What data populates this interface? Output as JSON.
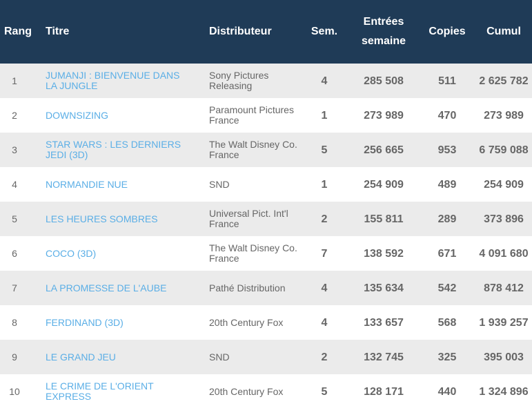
{
  "headers": {
    "rang": "Rang",
    "titre": "Titre",
    "distributeur": "Distributeur",
    "sem": "Sem.",
    "entrees_line1": "Entrées",
    "entrees_line2": "semaine",
    "copies": "Copies",
    "cumul": "Cumul"
  },
  "rows": [
    {
      "rang": "1",
      "titre_l1": "JUMANJI : BIENVENUE DANS",
      "titre_l2": "LA JUNGLE",
      "dist_l1": "Sony Pictures",
      "dist_l2": "Releasing",
      "sem": "4",
      "entrees": "285 508",
      "copies": "511",
      "cumul": "2 625 782"
    },
    {
      "rang": "2",
      "titre_l1": "DOWNSIZING",
      "titre_l2": "",
      "dist_l1": "Paramount Pictures",
      "dist_l2": "France",
      "sem": "1",
      "entrees": "273 989",
      "copies": "470",
      "cumul": "273 989"
    },
    {
      "rang": "3",
      "titre_l1": "STAR WARS : LES DERNIERS",
      "titre_l2": "JEDI (3D)",
      "dist_l1": "The Walt Disney Co.",
      "dist_l2": "France",
      "sem": "5",
      "entrees": "256 665",
      "copies": "953",
      "cumul": "6 759 088"
    },
    {
      "rang": "4",
      "titre_l1": "NORMANDIE NUE",
      "titre_l2": "",
      "dist_l1": "SND",
      "dist_l2": "",
      "sem": "1",
      "entrees": "254 909",
      "copies": "489",
      "cumul": "254 909"
    },
    {
      "rang": "5",
      "titre_l1": "LES HEURES SOMBRES",
      "titre_l2": "",
      "dist_l1": "Universal Pict. Int'l",
      "dist_l2": "France",
      "sem": "2",
      "entrees": "155 811",
      "copies": "289",
      "cumul": "373 896"
    },
    {
      "rang": "6",
      "titre_l1": "COCO (3D)",
      "titre_l2": "",
      "dist_l1": "The Walt Disney Co.",
      "dist_l2": "France",
      "sem": "7",
      "entrees": "138 592",
      "copies": "671",
      "cumul": "4 091 680"
    },
    {
      "rang": "7",
      "titre_l1": "LA PROMESSE DE L'AUBE",
      "titre_l2": "",
      "dist_l1": "Pathé Distribution",
      "dist_l2": "",
      "sem": "4",
      "entrees": "135 634",
      "copies": "542",
      "cumul": "878 412"
    },
    {
      "rang": "8",
      "titre_l1": "FERDINAND (3D)",
      "titre_l2": "",
      "dist_l1": "20th Century Fox",
      "dist_l2": "",
      "sem": "4",
      "entrees": "133 657",
      "copies": "568",
      "cumul": "1 939 257"
    },
    {
      "rang": "9",
      "titre_l1": "LE GRAND JEU",
      "titre_l2": "",
      "dist_l1": "SND",
      "dist_l2": "",
      "sem": "2",
      "entrees": "132 745",
      "copies": "325",
      "cumul": "395 003"
    },
    {
      "rang": "10",
      "titre_l1": "LE CRIME DE L'ORIENT",
      "titre_l2": "EXPRESS",
      "dist_l1": "20th Century Fox",
      "dist_l2": "",
      "sem": "5",
      "entrees": "128 171",
      "copies": "440",
      "cumul": "1 324 896"
    }
  ],
  "colors": {
    "header_bg": "#1f3b57",
    "link": "#5aaee6",
    "stripe": "#ebebeb"
  }
}
